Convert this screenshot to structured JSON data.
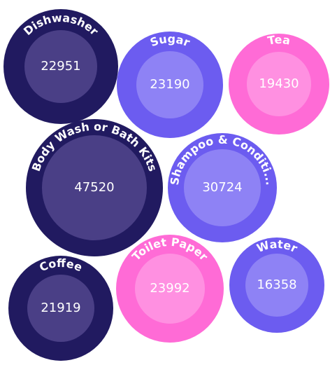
{
  "chart_data": {
    "type": "bubble",
    "categories": [
      "Dishwasher",
      "Sugar",
      "Tea",
      "Body Wash or Bath Kits",
      "Shampoo & Conditi...",
      "Coffee",
      "Toilet Paper",
      "Water"
    ],
    "values": [
      22951,
      23190,
      19430,
      47520,
      30724,
      21919,
      23992,
      16358
    ],
    "colors": [
      "#211a60",
      "#6c5cf0",
      "#ff6bd6",
      "#211a60",
      "#6c5cf0",
      "#211a60",
      "#ff6bd6",
      "#6c5cf0"
    ],
    "inner_colors": [
      "#4a3f86",
      "#8e82f5",
      "#ff90e1",
      "#4a3f86",
      "#8e82f5",
      "#4a3f86",
      "#ff90e1",
      "#8e82f5"
    ]
  }
}
